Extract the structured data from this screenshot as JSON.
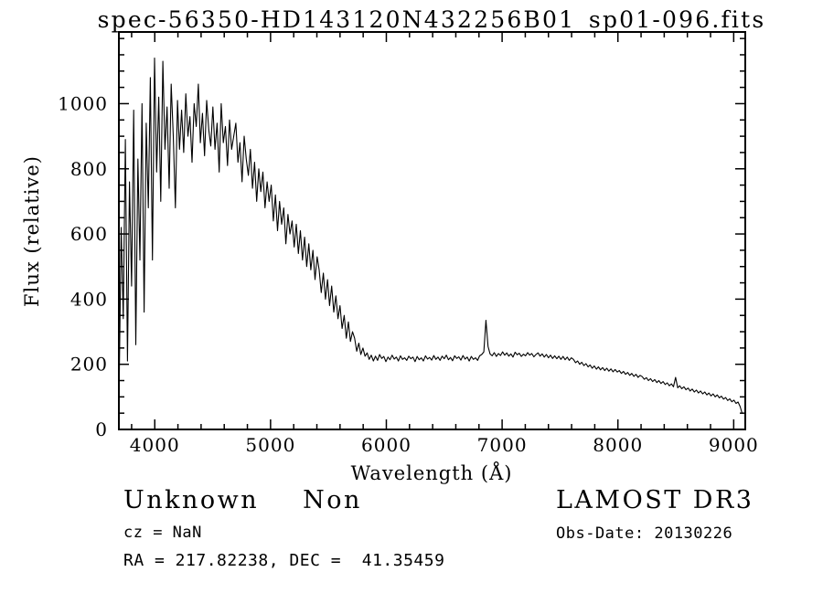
{
  "chart_data": {
    "type": "line",
    "title": "spec-56350-HD143120N432256B01_sp01-096.fits",
    "xlabel": "Wavelength (Å)",
    "ylabel": "Flux (relative)",
    "xlim": [
      3690,
      9100
    ],
    "ylim": [
      0,
      1220
    ],
    "xticks": [
      4000,
      5000,
      6000,
      7000,
      8000,
      9000
    ],
    "yticks": [
      0,
      200,
      400,
      600,
      800,
      1000
    ],
    "x_minor_step": 200,
    "y_minor_step": 50,
    "grid": false,
    "legend": null,
    "line_color": "#000000",
    "x_start": 3692,
    "x_step": 18,
    "flux": [
      130,
      620,
      340,
      890,
      210,
      760,
      440,
      980,
      260,
      830,
      520,
      1000,
      360,
      940,
      680,
      1080,
      520,
      1140,
      790,
      1020,
      700,
      1130,
      860,
      990,
      740,
      1060,
      900,
      680,
      1010,
      860,
      980,
      850,
      1030,
      900,
      960,
      820,
      1000,
      930,
      1060,
      880,
      970,
      840,
      1010,
      920,
      870,
      990,
      860,
      940,
      790,
      1000,
      880,
      930,
      810,
      950,
      860,
      900,
      940,
      820,
      880,
      760,
      900,
      830,
      780,
      860,
      740,
      820,
      700,
      800,
      730,
      790,
      680,
      760,
      700,
      750,
      640,
      720,
      610,
      700,
      630,
      680,
      570,
      660,
      600,
      640,
      560,
      630,
      540,
      610,
      520,
      590,
      500,
      570,
      490,
      550,
      460,
      530,
      490,
      420,
      480,
      400,
      460,
      380,
      440,
      360,
      410,
      340,
      380,
      310,
      350,
      280,
      330,
      270,
      300,
      280,
      240,
      265,
      230,
      250,
      225,
      235,
      215,
      228,
      210,
      225,
      212,
      230,
      218,
      224,
      208,
      222,
      214,
      228,
      216,
      222,
      210,
      226,
      215,
      220,
      212,
      225,
      217,
      222,
      208,
      224,
      214,
      220,
      210,
      226,
      216,
      221,
      213,
      227,
      215,
      222,
      212,
      225,
      217,
      228,
      214,
      221,
      211,
      226,
      218,
      223,
      213,
      227,
      216,
      222,
      210,
      224,
      215,
      220,
      212,
      226,
      230,
      238,
      335,
      255,
      232,
      226,
      236,
      224,
      233,
      227,
      238,
      228,
      235,
      225,
      232,
      222,
      237,
      229,
      234,
      224,
      231,
      226,
      236,
      228,
      233,
      223,
      230,
      235,
      225,
      232,
      222,
      230,
      220,
      228,
      218,
      226,
      217,
      225,
      215,
      224,
      214,
      222,
      212,
      220,
      215,
      205,
      210,
      200,
      206,
      196,
      202,
      192,
      198,
      188,
      195,
      185,
      192,
      183,
      190,
      181,
      188,
      179,
      186,
      177,
      184,
      176,
      181,
      172,
      178,
      169,
      175,
      166,
      172,
      163,
      169,
      160,
      166,
      162,
      154,
      159,
      150,
      156,
      147,
      153,
      144,
      150,
      141,
      147,
      138,
      143,
      134,
      140,
      131,
      160,
      128,
      134,
      125,
      131,
      122,
      127,
      118,
      124,
      115,
      121,
      112,
      118,
      109,
      115,
      106,
      112,
      103,
      109,
      100,
      106,
      97,
      102,
      93,
      98,
      89,
      94,
      85,
      90,
      80,
      84,
      70,
      48
    ]
  },
  "annotations": {
    "class_label": "Unknown",
    "subclass_label": "Non",
    "survey_label": "LAMOST DR3",
    "cz_line": "cz = NaN",
    "obs_date_line": "Obs-Date: 20130226",
    "radec_line": "RA = 217.82238, DEC =  41.35459"
  }
}
